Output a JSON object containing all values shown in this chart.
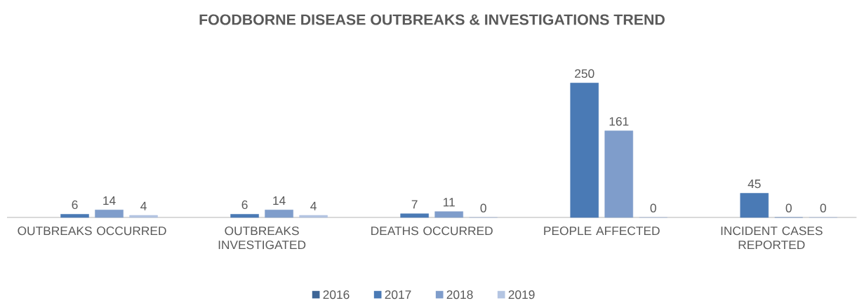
{
  "chart_data": {
    "type": "bar",
    "title": "FOODBORNE DISEASE OUTBREAKS & INVESTIGATIONS TREND",
    "categories": [
      "OUTBREAKS OCCURRED",
      "OUTBREAKS INVESTIGATED",
      "DEATHS OCCURRED",
      "PEOPLE AFFECTED",
      "INCIDENT CASES REPORTED"
    ],
    "series": [
      {
        "name": "2016",
        "color": "#3d6596",
        "values": [
          null,
          null,
          null,
          null,
          null
        ]
      },
      {
        "name": "2017",
        "color": "#4a7ab5",
        "values": [
          6,
          6,
          7,
          250,
          45
        ]
      },
      {
        "name": "2018",
        "color": "#7f9dcb",
        "values": [
          14,
          14,
          11,
          161,
          0
        ]
      },
      {
        "name": "2019",
        "color": "#b4c5e2",
        "values": [
          4,
          4,
          0,
          0,
          0
        ]
      }
    ],
    "data_labels": true,
    "legend": "bottom"
  }
}
